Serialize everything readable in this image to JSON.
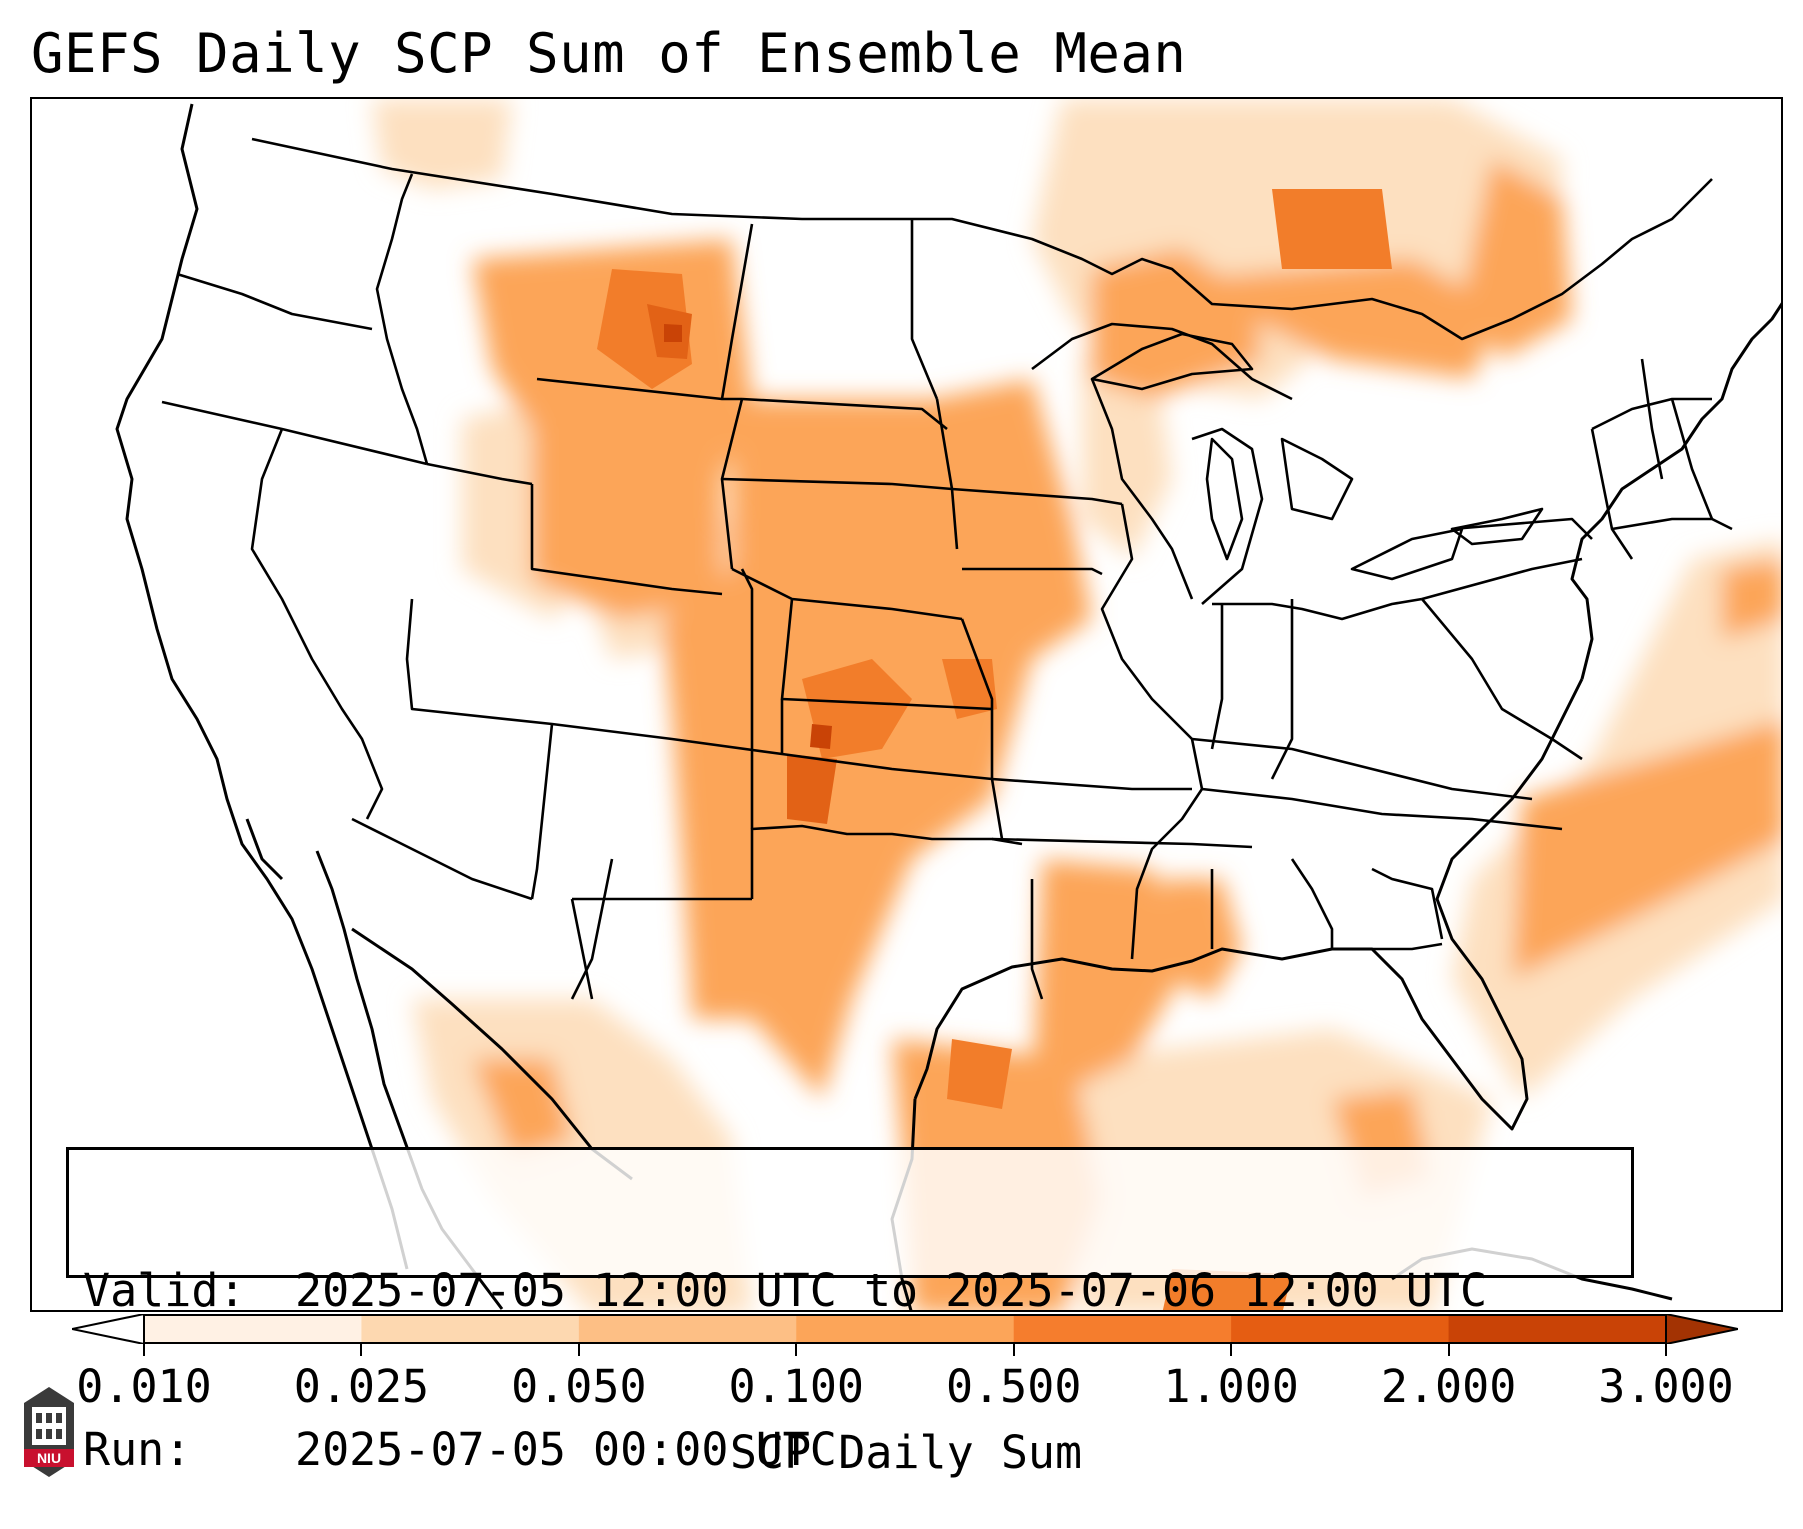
{
  "title": "GEFS Daily SCP Sum of Ensemble Mean",
  "info_box": {
    "valid_label": "Valid:",
    "valid_value": "2025-07-05 12:00 UTC to 2025-07-06 12:00 UTC",
    "run_label": "Run:",
    "run_value": "2025-07-05 00:00 UTC"
  },
  "colorbar": {
    "label": "SCP Daily Sum",
    "ticks": [
      "0.010",
      "0.025",
      "0.050",
      "0.100",
      "0.500",
      "1.000",
      "2.000",
      "3.000"
    ],
    "colors": [
      "#fff1e4",
      "#fdd8b0",
      "#fdbf85",
      "#fca559",
      "#f57d2d",
      "#e55d12",
      "#c94306"
    ],
    "under_color": "#ffffff",
    "over_color": "#a33303",
    "extend": "both"
  },
  "map": {
    "region": "CONUS",
    "field": "SCP daily sum (ensemble mean)",
    "outline_color": "#000000",
    "projection": "lambert-conformal"
  },
  "logo": {
    "text": "NIU",
    "primary_color": "#c8102e",
    "secondary_color": "#000000"
  }
}
